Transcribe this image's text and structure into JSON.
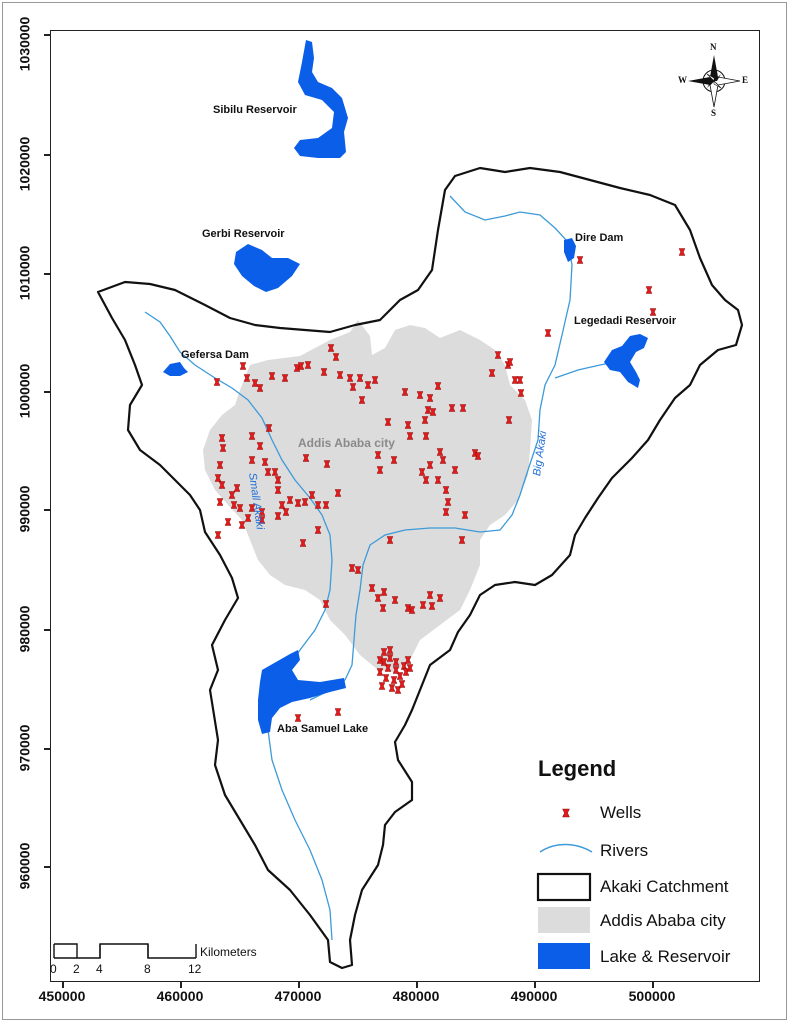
{
  "axes": {
    "y_ticks": [
      "1030000",
      "1020000",
      "1010000",
      "1000000",
      "990000",
      "980000",
      "970000",
      "960000"
    ],
    "x_ticks": [
      "450000",
      "460000",
      "470000",
      "480000",
      "490000",
      "500000"
    ]
  },
  "map_labels": {
    "sibilu": "Sibilu Reservoir",
    "gerbi": "Gerbi Reservoir",
    "gefersa": "Gefersa Dam",
    "dire": "Dire Dam",
    "legedadi": "Legedadi Reservoir",
    "aba_samuel": "Aba Samuel Lake",
    "city": "Addis Ababa city",
    "small_akaki": "Small Akaki",
    "big_akaki": "Big Akaki"
  },
  "compass": {
    "n": "N",
    "s": "S",
    "e": "E",
    "w": "W"
  },
  "scale_bar": {
    "unit": "Kilometers",
    "ticks": [
      "0",
      "2",
      "4",
      "8",
      "12"
    ]
  },
  "legend": {
    "title": "Legend",
    "wells": "Wells",
    "rivers": "Rivers",
    "catchment": "Akaki Catchment",
    "city": "Addis Ababa city",
    "lake": "Lake & Reservoir"
  },
  "colors": {
    "water": "#0a5ee8",
    "river": "#3d9ad9",
    "city": "#dcdcdc",
    "well": "#e01b1b",
    "boundary": "#111111"
  }
}
